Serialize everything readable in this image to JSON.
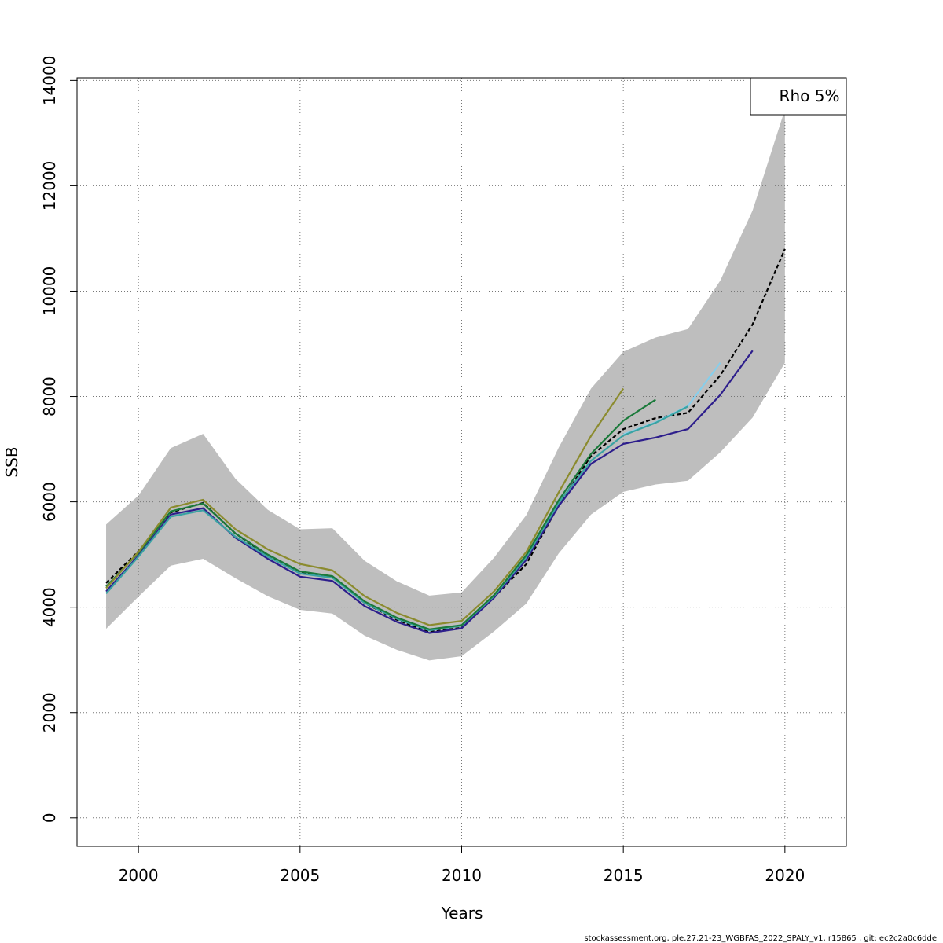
{
  "chart_data": {
    "type": "line",
    "xlabel": "Years",
    "ylabel": "SSB",
    "xlim": [
      1998.1,
      2021.9
    ],
    "ylim": [
      -540,
      14050
    ],
    "x_ticks": [
      2000,
      2005,
      2010,
      2015,
      2020
    ],
    "x_tick_labels": [
      "2000",
      "2005",
      "2010",
      "2015",
      "2020"
    ],
    "y_ticks": [
      0,
      2000,
      4000,
      6000,
      8000,
      10000,
      12000,
      14000
    ],
    "y_tick_labels": [
      "0",
      "2000",
      "4000",
      "6000",
      "8000",
      "10000",
      "12000",
      "14000"
    ],
    "grid": true,
    "legend": {
      "position": "top-right",
      "text": "Rho 5%"
    },
    "footer": "stockassessment.org, ple.27.21-23_WGBFAS_2022_SPALY_v1, r15865 , git: ec2c2a0c6dde",
    "confidence_band": {
      "color": "#bebebe",
      "x": [
        1999,
        2000,
        2001,
        2002,
        2003,
        2004,
        2005,
        2006,
        2007,
        2008,
        2009,
        2010,
        2011,
        2012,
        2013,
        2014,
        2015,
        2016,
        2017,
        2018,
        2019,
        2020
      ],
      "upper": [
        5570,
        6120,
        7020,
        7290,
        6440,
        5850,
        5480,
        5500,
        4880,
        4490,
        4220,
        4280,
        4940,
        5750,
        7030,
        8150,
        8850,
        9120,
        9280,
        10200,
        11530,
        13450
      ],
      "lower": [
        3590,
        4200,
        4790,
        4920,
        4550,
        4210,
        3950,
        3880,
        3460,
        3190,
        2990,
        3070,
        3540,
        4070,
        5020,
        5760,
        6190,
        6330,
        6400,
        6940,
        7600,
        8640
      ]
    },
    "series": [
      {
        "color": "#000000",
        "dashed": true,
        "x": [
          1999,
          2000,
          2001,
          2002,
          2003,
          2004,
          2005,
          2006,
          2007,
          2008,
          2009,
          2010,
          2011,
          2012,
          2013,
          2014,
          2015,
          2016,
          2017,
          2018,
          2019,
          2020
        ],
        "values": [
          4460,
          5060,
          5800,
          5980,
          5400,
          4980,
          4660,
          4580,
          4080,
          3760,
          3530,
          3610,
          4190,
          4820,
          5940,
          6870,
          7380,
          7590,
          7690,
          8400,
          9370,
          10800
        ]
      },
      {
        "color": "#2d1e8c",
        "x": [
          1999,
          2000,
          2001,
          2002,
          2003,
          2004,
          2005,
          2006,
          2007,
          2008,
          2009,
          2010,
          2011,
          2012,
          2013,
          2014,
          2015,
          2016,
          2017,
          2018,
          2019
        ],
        "values": [
          4300,
          4980,
          5760,
          5880,
          5320,
          4920,
          4580,
          4500,
          4020,
          3720,
          3510,
          3600,
          4180,
          4900,
          5920,
          6720,
          7100,
          7220,
          7380,
          8030,
          8870
        ]
      },
      {
        "color": "#87ceeb",
        "x": [
          2015,
          2016,
          2017,
          2018
        ],
        "values": [
          7280,
          7510,
          7820,
          8640
        ]
      },
      {
        "color": "#3aa3a3",
        "x": [
          1999,
          2000,
          2001,
          2002,
          2003,
          2004,
          2005,
          2006,
          2007,
          2008,
          2009,
          2010,
          2011,
          2012,
          2013,
          2014,
          2015,
          2016,
          2017
        ],
        "values": [
          4260,
          4960,
          5720,
          5840,
          5340,
          4960,
          4640,
          4560,
          4080,
          3780,
          3560,
          3650,
          4210,
          4950,
          5980,
          6780,
          7260,
          7500,
          7810
        ]
      },
      {
        "color": "#1a7a3a",
        "x": [
          1999,
          2000,
          2001,
          2002,
          2003,
          2004,
          2005,
          2006,
          2007,
          2008,
          2009,
          2010,
          2011,
          2012,
          2013,
          2014,
          2015,
          2016
        ],
        "values": [
          4390,
          5030,
          5820,
          5970,
          5400,
          5000,
          4680,
          4590,
          4110,
          3800,
          3580,
          3660,
          4230,
          4990,
          6030,
          6910,
          7540,
          7940
        ]
      },
      {
        "color": "#8b8b2e",
        "x": [
          1999,
          2000,
          2001,
          2002,
          2003,
          2004,
          2005,
          2006,
          2007,
          2008,
          2009,
          2010,
          2011,
          2012,
          2013,
          2014,
          2015
        ],
        "values": [
          4360,
          5050,
          5890,
          6040,
          5480,
          5100,
          4820,
          4700,
          4210,
          3890,
          3660,
          3740,
          4300,
          5050,
          6180,
          7250,
          8150
        ]
      }
    ]
  }
}
